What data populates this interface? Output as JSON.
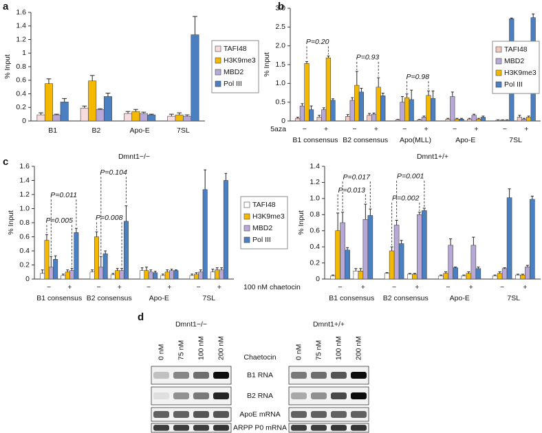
{
  "chart_data": [
    {
      "type": "bar",
      "panel_label": "a",
      "ylabel": "% Input",
      "categories": [
        "B1",
        "B2",
        "Apo-E",
        "7SL"
      ],
      "series": [
        {
          "name": "TAFI48",
          "color": "#f6dcdc",
          "values": [
            0.09,
            0.19,
            0.11,
            0.07
          ],
          "errors": [
            0.03,
            0.03,
            0.03,
            0.03
          ]
        },
        {
          "name": "H3K9me3",
          "color": "#f5b800",
          "values": [
            0.55,
            0.59,
            0.14,
            0.09
          ],
          "errors": [
            0.07,
            0.08,
            0.03,
            0.03
          ]
        },
        {
          "name": "MBD2",
          "color": "#b8a8d8",
          "values": [
            0.09,
            0.17,
            0.11,
            0.07
          ],
          "errors": [
            0.01,
            0.01,
            0.02,
            0.02
          ]
        },
        {
          "name": "Pol III",
          "color": "#4a7fc1",
          "values": [
            0.28,
            0.36,
            0.09,
            1.27
          ],
          "errors": [
            0.05,
            0.05,
            0.01,
            0.27
          ]
        }
      ],
      "ylim": [
        0,
        1.6
      ],
      "yticks": [
        0,
        0.2,
        0.4,
        0.6,
        0.8,
        1,
        1.2,
        1.4,
        1.6
      ],
      "legend": "right"
    },
    {
      "type": "bar",
      "panel_label": "b",
      "ylabel": "% Input",
      "categories": [
        "−",
        "+",
        "−",
        "+",
        "−",
        "+",
        "−",
        "+",
        "−",
        "+"
      ],
      "groups": [
        "B1 consensus",
        "B2 consensus",
        "Apo(MLL)",
        "Apo-E",
        "7SL"
      ],
      "x_label": "5aza",
      "series": [
        {
          "name": "TAFI48",
          "color": "#f2c9c0",
          "values": [
            0.07,
            0.1,
            0.12,
            0.15,
            0.03,
            0.03,
            0.05,
            0.05,
            0.02,
            0.1
          ],
          "errors": [
            0.03,
            0.05,
            0.05,
            0.05,
            0.01,
            0.01,
            0.02,
            0.02,
            0.01,
            0.05
          ]
        },
        {
          "name": "MBD2",
          "color": "#b8a8d8",
          "values": [
            0.4,
            0.3,
            0.55,
            0.18,
            0.5,
            0.1,
            0.65,
            0.15,
            0.02,
            0.05
          ],
          "errors": [
            0.06,
            0.05,
            0.07,
            0.03,
            0.15,
            0.03,
            0.12,
            0.03,
            0.01,
            0.02
          ]
        },
        {
          "name": "H3K9me3",
          "color": "#f5b800",
          "values": [
            1.53,
            1.68,
            0.95,
            0.9,
            0.62,
            0.68,
            0.05,
            0.05,
            0.02,
            0.1
          ],
          "errors": [
            0.05,
            0.05,
            0.37,
            0.25,
            0.1,
            0.12,
            0.02,
            0.02,
            0.01,
            0.03
          ]
        },
        {
          "name": "Pol III",
          "color": "#4a7fc1",
          "values": [
            0.3,
            0.55,
            0.77,
            0.67,
            0.57,
            0.6,
            0.05,
            0.1,
            2.72,
            2.75
          ],
          "errors": [
            0.1,
            0.04,
            0.1,
            0.07,
            0.25,
            0.2,
            0.02,
            0.03,
            0.02,
            0.1
          ]
        }
      ],
      "annotations": [
        "P=0.20",
        "P=0.93",
        "P=0.98"
      ],
      "ylim": [
        0,
        3
      ],
      "yticks": [
        0,
        0.5,
        {
          "value": 1,
          "label": "1.0"
        },
        1.5,
        {
          "value": 2,
          "label": "2.0"
        },
        2.5,
        {
          "value": 3,
          "label": "3.0"
        }
      ],
      "legend": "upper right"
    },
    {
      "type": "bar",
      "panel_label": "c",
      "title": "Dmnt1−/−",
      "ylabel": "% Input",
      "categories": [
        "−",
        "+",
        "−",
        "+",
        "−",
        "+",
        "−",
        "+"
      ],
      "groups": [
        "B1 consensus",
        "B2 consensus",
        "Apo-E",
        "7SL"
      ],
      "x_label": "100 nM chaetocin",
      "series": [
        {
          "name": "TAFI48",
          "color": "#ffffff",
          "values": [
            0.08,
            0.05,
            0.1,
            0.06,
            0.12,
            0.05,
            0.05,
            0.1
          ],
          "errors": [
            0.05,
            0.02,
            0.03,
            0.02,
            0.04,
            0.02,
            0.02,
            0.04
          ]
        },
        {
          "name": "H3K9me3",
          "color": "#f5b800",
          "values": [
            0.55,
            0.1,
            0.6,
            0.12,
            0.12,
            0.1,
            0.07,
            0.13
          ],
          "errors": [
            0.08,
            0.03,
            0.07,
            0.03,
            0.05,
            0.03,
            0.02,
            0.03
          ]
        },
        {
          "name": "MBD2",
          "color": "#b8a8d8",
          "values": [
            0.17,
            0.12,
            0.17,
            0.12,
            0.1,
            0.12,
            0.1,
            0.13
          ],
          "errors": [
            0.15,
            0.03,
            0.15,
            0.03,
            0.03,
            0.02,
            0.03,
            0.03
          ]
        },
        {
          "name": "Pol III",
          "color": "#4a7fc1",
          "values": [
            0.28,
            0.66,
            0.36,
            0.82,
            0.09,
            0.12,
            1.27,
            1.4
          ],
          "errors": [
            0.05,
            0.06,
            0.04,
            0.22,
            0.02,
            0.01,
            0.28,
            0.1
          ]
        }
      ],
      "annotations": [
        "P=0.005",
        "P=0.011",
        "P=0.008",
        "P=0.104"
      ],
      "ylim": [
        0,
        1.6
      ],
      "yticks": [
        0,
        0.2,
        0.4,
        0.6,
        0.8,
        {
          "value": 1,
          "label": "1.0"
        },
        1.2,
        1.4,
        1.6
      ],
      "legend": "right"
    },
    {
      "type": "bar",
      "title": "Dmnt1+/+",
      "ylabel": "% Input",
      "categories": [
        "−",
        "+",
        "−",
        "+",
        "−",
        "+",
        "−",
        "+"
      ],
      "groups": [
        "B1 consensus",
        "B2 consensus",
        "Apo-E",
        "7SL"
      ],
      "series": [
        {
          "name": "TAFI48",
          "color": "#ffffff",
          "values": [
            0.04,
            0.1,
            0.07,
            0.06,
            0.04,
            0.04,
            0.04,
            0.05
          ],
          "errors": [
            0.01,
            0.03,
            0.01,
            0.01,
            0.01,
            0.01,
            0.01,
            0.01
          ]
        },
        {
          "name": "H3K9me3",
          "color": "#f5b800",
          "values": [
            0.6,
            0.1,
            0.35,
            0.06,
            0.07,
            0.07,
            0.07,
            0.05
          ],
          "errors": [
            0.22,
            0.03,
            0.05,
            0.01,
            0.02,
            0.02,
            0.02,
            0.01
          ]
        },
        {
          "name": "MBD2",
          "color": "#b8a8d8",
          "values": [
            0.7,
            0.74,
            0.67,
            0.8,
            0.42,
            0.42,
            0.13,
            0.15
          ],
          "errors": [
            0.13,
            0.19,
            0.06,
            0.03,
            0.08,
            0.1,
            0.01,
            0.02
          ]
        },
        {
          "name": "Pol III",
          "color": "#4a7fc1",
          "values": [
            0.36,
            0.79,
            0.44,
            0.85,
            0.14,
            0.13,
            1.01,
            0.99
          ],
          "errors": [
            0.03,
            0.08,
            0.04,
            0.03,
            0.01,
            0.02,
            0.11,
            0.04
          ]
        }
      ],
      "annotations": [
        "P=0.013",
        "P=0.017",
        "P=0.002",
        "P=0.001"
      ],
      "ylim": [
        0,
        1.4
      ],
      "yticks": [
        0,
        0.2,
        0.4,
        0.6,
        0.8,
        {
          "value": 1,
          "label": "1.0"
        },
        1.2,
        1.4
      ]
    }
  ],
  "blot": {
    "panel_label": "d",
    "titles": [
      "Dmnt1−/−",
      "Dmnt1+/+"
    ],
    "lanes": [
      "0 nM",
      "75 nM",
      "100 nM",
      "200 nM"
    ],
    "treatment": "Chaetocin",
    "rows": [
      "B1 RNA",
      "B2 RNA",
      "ApoE mRNA",
      "ARPP P0 mRNA"
    ]
  }
}
